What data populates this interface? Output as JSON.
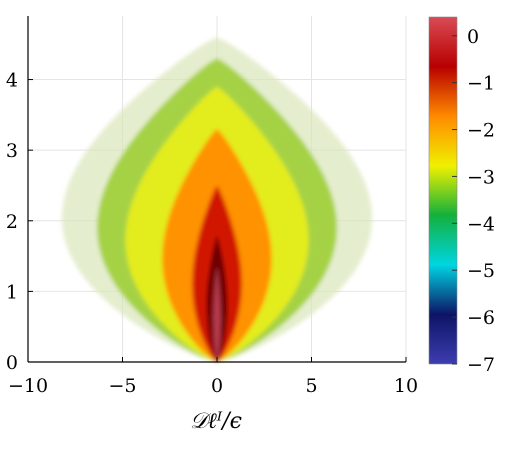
{
  "chart_data": {
    "type": "heatmap",
    "title": "",
    "xlabel": "𝒟ℓᴵ/ϵ",
    "ylabel": "",
    "xlim": [
      -10,
      10
    ],
    "ylim": [
      0,
      4.9
    ],
    "x_ticks": [
      "−10",
      "−5",
      "0",
      "5",
      "10"
    ],
    "x_tick_values": [
      -10,
      -5,
      0,
      5,
      10
    ],
    "y_ticks": [
      "0",
      "1",
      "2",
      "3",
      "4"
    ],
    "y_tick_values": [
      0,
      1,
      2,
      3,
      4
    ],
    "grid": true,
    "colorbar": {
      "range": [
        -7,
        0.4
      ],
      "ticks": [
        "0",
        "−1",
        "−2",
        "−3",
        "−4",
        "−5",
        "−6",
        "−7"
      ],
      "tick_values": [
        0,
        -1,
        -2,
        -3,
        -4,
        -5,
        -6,
        -7
      ],
      "colors": [
        "#3d3db0",
        "#0d1466",
        "#00d5e2",
        "#13b03c",
        "#f0f000",
        "#ff8a00",
        "#b80000",
        "#d94b55"
      ]
    },
    "density_contours": [
      {
        "level": -5,
        "color": "#d8e6b8",
        "y_peak": 4.6,
        "x_halfwidth_max": 8.8
      },
      {
        "level": -4,
        "color": "#a5d245",
        "y_peak": 4.3,
        "x_halfwidth_max": 6.8
      },
      {
        "level": -3,
        "color": "#e3ec1c",
        "y_peak": 3.9,
        "x_halfwidth_max": 5.2
      },
      {
        "level": -2,
        "color": "#ff9200",
        "y_peak": 3.3,
        "x_halfwidth_max": 3.1
      },
      {
        "level": -1,
        "color": "#d11800",
        "y_peak": 2.5,
        "x_halfwidth_max": 1.4
      },
      {
        "level": -0.3,
        "color": "#6e0000",
        "y_peak": 1.8,
        "x_halfwidth_max": 0.6
      },
      {
        "level": 0,
        "color": "#b53a4b",
        "y_peak": 1.35,
        "x_halfwidth_max": 0.22
      }
    ]
  },
  "colors": {
    "axis": "#000000",
    "grid": "#e4e4e4"
  }
}
